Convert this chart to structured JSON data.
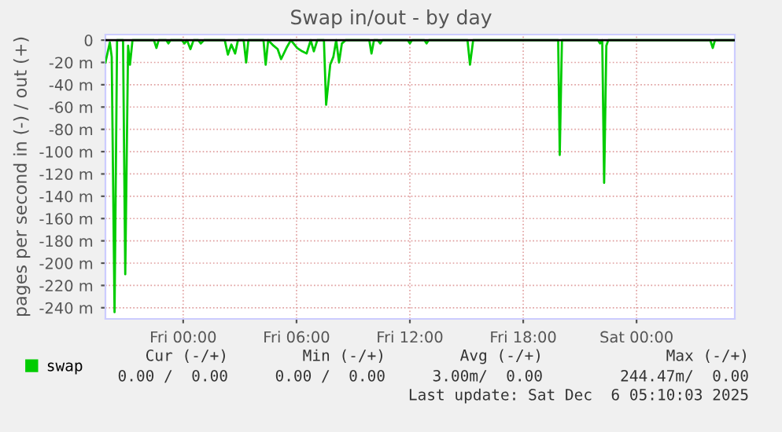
{
  "chart_data": {
    "type": "line",
    "title": "Swap in/out - by day",
    "ylabel": "pages per second in (-) / out (+)",
    "x": [
      "2025-12-04T19:53",
      "2025-12-04T20:07",
      "2025-12-04T20:13",
      "2025-12-04T20:22",
      "2025-12-04T20:30",
      "2025-12-04T20:49",
      "2025-12-04T20:56",
      "2025-12-04T21:05",
      "2025-12-04T21:11",
      "2025-12-04T21:19",
      "2025-12-04T22:27",
      "2025-12-04T22:35",
      "2025-12-04T22:42",
      "2025-12-04T23:06",
      "2025-12-04T23:13",
      "2025-12-04T23:20",
      "2025-12-04T23:56",
      "2025-12-05T00:04",
      "2025-12-05T00:12",
      "2025-12-05T00:23",
      "2025-12-05T00:33",
      "2025-12-05T00:48",
      "2025-12-05T00:56",
      "2025-12-05T01:06",
      "2025-12-05T02:12",
      "2025-12-05T02:22",
      "2025-12-05T02:33",
      "2025-12-05T02:45",
      "2025-12-05T02:54",
      "2025-12-05T03:12",
      "2025-12-05T03:20",
      "2025-12-05T03:27",
      "2025-12-05T04:15",
      "2025-12-05T04:22",
      "2025-12-05T04:30",
      "2025-12-05T04:47",
      "2025-12-05T05:00",
      "2025-12-05T05:11",
      "2025-12-05T05:28",
      "2025-12-05T05:42",
      "2025-12-05T06:02",
      "2025-12-05T06:18",
      "2025-12-05T06:32",
      "2025-12-05T06:45",
      "2025-12-05T06:55",
      "2025-12-05T07:06",
      "2025-12-05T07:27",
      "2025-12-05T07:34",
      "2025-12-05T07:47",
      "2025-12-05T07:57",
      "2025-12-05T08:06",
      "2025-12-05T08:15",
      "2025-12-05T08:24",
      "2025-12-05T08:36",
      "2025-12-05T08:45",
      "2025-12-05T09:51",
      "2025-12-05T09:58",
      "2025-12-05T10:06",
      "2025-12-05T10:18",
      "2025-12-05T10:26",
      "2025-12-05T10:33",
      "2025-12-05T11:53",
      "2025-12-05T12:00",
      "2025-12-05T12:07",
      "2025-12-05T12:46",
      "2025-12-05T12:53",
      "2025-12-05T13:00",
      "2025-12-05T15:03",
      "2025-12-05T15:11",
      "2025-12-05T15:21",
      "2025-12-05T19:51",
      "2025-12-05T19:56",
      "2025-12-05T20:03",
      "2025-12-05T21:57",
      "2025-12-05T22:04",
      "2025-12-05T22:11",
      "2025-12-05T22:17",
      "2025-12-05T22:24",
      "2025-12-05T22:30",
      "2025-12-06T03:54",
      "2025-12-06T04:02",
      "2025-12-06T04:09",
      "2025-12-06T05:12"
    ],
    "series": [
      {
        "name": "swap",
        "color": "#00cc00",
        "values": [
          -20,
          -2,
          -15,
          -244,
          0,
          0,
          -210,
          -5,
          -22,
          0,
          0,
          -7,
          0,
          0,
          -3,
          0,
          0,
          -3,
          0,
          -8,
          0,
          0,
          -3,
          0,
          0,
          -13,
          -4,
          -12,
          0,
          0,
          -20,
          0,
          0,
          -22,
          0,
          -5,
          -8,
          -17,
          -7,
          0,
          -7,
          -10,
          -12,
          0,
          -10,
          0,
          0,
          -58,
          -22,
          -15,
          0,
          -20,
          -3,
          0,
          0,
          0,
          -12,
          0,
          0,
          -3,
          0,
          0,
          -3,
          0,
          0,
          -3,
          0,
          0,
          -22,
          0,
          0,
          -103,
          0,
          0,
          -3,
          0,
          -128,
          -5,
          0,
          0,
          -7,
          0,
          0
        ]
      }
    ],
    "xlim": [
      "2025-12-04T19:53",
      "2025-12-06T05:12"
    ],
    "xticks": [
      {
        "value": "2025-12-05T00:00",
        "label": "Fri 00:00"
      },
      {
        "value": "2025-12-05T06:00",
        "label": "Fri 06:00"
      },
      {
        "value": "2025-12-05T12:00",
        "label": "Fri 12:00"
      },
      {
        "value": "2025-12-05T18:00",
        "label": "Fri 18:00"
      },
      {
        "value": "2025-12-06T00:00",
        "label": "Sat 00:00"
      }
    ],
    "ylim": [
      -250,
      5
    ],
    "yticks": [
      {
        "value": -240,
        "label": "-240 m"
      },
      {
        "value": -220,
        "label": "-220 m"
      },
      {
        "value": -200,
        "label": "-200 m"
      },
      {
        "value": -180,
        "label": "-180 m"
      },
      {
        "value": -160,
        "label": "-160 m"
      },
      {
        "value": -140,
        "label": "-140 m"
      },
      {
        "value": -120,
        "label": "-120 m"
      },
      {
        "value": -100,
        "label": "-100 m"
      },
      {
        "value": -80,
        "label": "-80 m"
      },
      {
        "value": -60,
        "label": "-60 m"
      },
      {
        "value": -40,
        "label": "-40 m"
      },
      {
        "value": -20,
        "label": "-20 m"
      },
      0
    ],
    "ref_lines": [
      {
        "axis": "y",
        "value": 0,
        "color": "#000000"
      }
    ],
    "grid": true,
    "legend": "bottom left",
    "line_style": "solid",
    "marker": "none",
    "annotations": [
      "Cur (-/+)",
      "Min (-/+)",
      "Avg (-/+)",
      "Max (-/+)",
      "0.00 /  0.00",
      "0.00 /  0.00",
      "3.00m/  0.00",
      "244.47m/  0.00",
      "Last update: Sat Dec  6 05:10:03 2025"
    ]
  }
}
